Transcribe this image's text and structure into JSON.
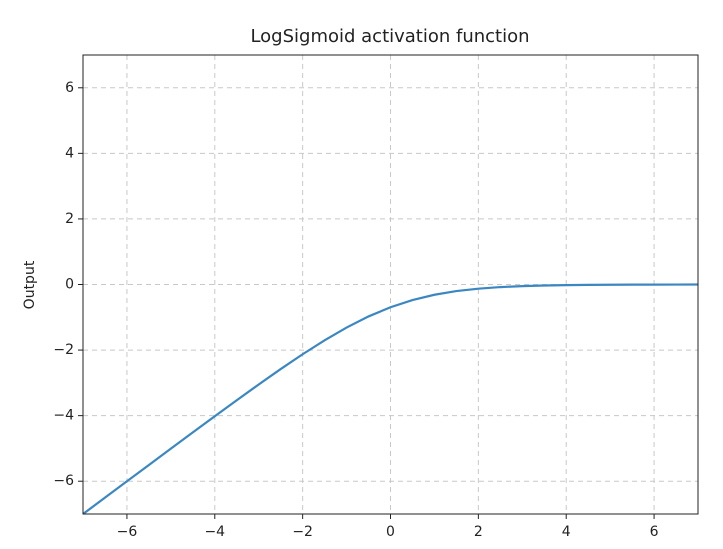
{
  "chart_data": {
    "type": "line",
    "title": "LogSigmoid activation function",
    "ylabel": "Output",
    "x": [
      -7,
      -6.5,
      -6,
      -5.5,
      -5,
      -4.5,
      -4,
      -3.5,
      -3,
      -2.5,
      -2,
      -1.5,
      -1,
      -0.5,
      0,
      0.5,
      1,
      1.5,
      2,
      2.5,
      3,
      3.5,
      4,
      4.5,
      5,
      5.5,
      6,
      6.5,
      7
    ],
    "series": [
      {
        "color": "#3b87c2",
        "values": [
          -7.001,
          -6.502,
          -6.002,
          -5.504,
          -5.007,
          -4.511,
          -4.018,
          -3.53,
          -3.049,
          -2.579,
          -2.127,
          -1.701,
          -1.313,
          -0.974,
          -0.693,
          -0.474,
          -0.313,
          -0.201,
          -0.127,
          -0.079,
          -0.049,
          -0.03,
          -0.018,
          -0.011,
          -0.007,
          -0.004,
          -0.003,
          -0.002,
          -0.001
        ]
      }
    ],
    "xlim": [
      -7,
      7
    ],
    "ylim": [
      -7,
      7
    ],
    "xticks": [
      {
        "value": -6,
        "label": "−6"
      },
      {
        "value": -4,
        "label": "−4"
      },
      {
        "value": -2,
        "label": "−2"
      },
      0,
      2,
      4,
      6
    ],
    "yticks": [
      {
        "value": -6,
        "label": "−6"
      },
      {
        "value": -4,
        "label": "−4"
      },
      {
        "value": -2,
        "label": "−2"
      },
      0,
      2,
      4,
      6
    ],
    "grid": true
  }
}
